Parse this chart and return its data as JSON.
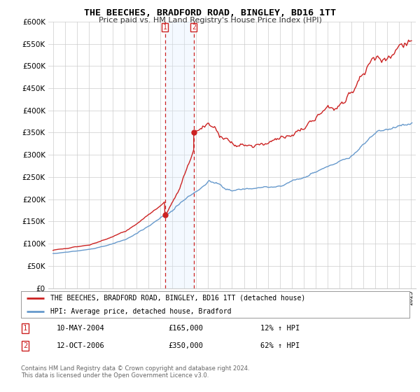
{
  "title": "THE BEECHES, BRADFORD ROAD, BINGLEY, BD16 1TT",
  "subtitle": "Price paid vs. HM Land Registry's House Price Index (HPI)",
  "legend_line1": "THE BEECHES, BRADFORD ROAD, BINGLEY, BD16 1TT (detached house)",
  "legend_line2": "HPI: Average price, detached house, Bradford",
  "sale1_date": 2004.37,
  "sale1_label": "10-MAY-2004",
  "sale1_price": 165000,
  "sale1_pct": "12% ↑ HPI",
  "sale2_date": 2006.79,
  "sale2_label": "12-OCT-2006",
  "sale2_price": 350000,
  "sale2_pct": "62% ↑ HPI",
  "red_color": "#cc2222",
  "blue_color": "#6699cc",
  "shade_color": "#ddeeff",
  "footer": "Contains HM Land Registry data © Crown copyright and database right 2024.\nThis data is licensed under the Open Government Licence v3.0.",
  "ylim": [
    0,
    600000
  ],
  "yticks": [
    0,
    50000,
    100000,
    150000,
    200000,
    250000,
    300000,
    350000,
    400000,
    450000,
    500000,
    550000,
    600000
  ],
  "background": "#ffffff"
}
